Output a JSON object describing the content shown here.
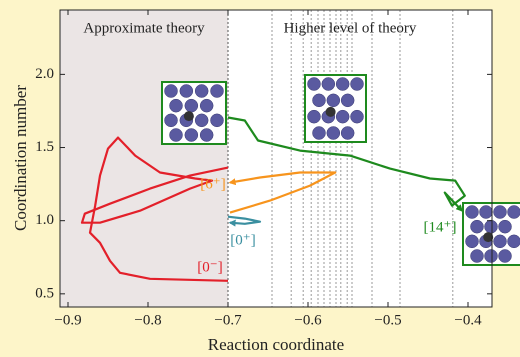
{
  "chart_data": {
    "type": "line",
    "xlabel": "Reaction coordinate",
    "ylabel": "Coordination number",
    "annotations": [
      "Approximate theory",
      "Higher level of theory"
    ],
    "xlim": [
      -0.91,
      -0.37
    ],
    "ylim": [
      0.41,
      2.44
    ],
    "xticks": [
      {
        "value": -0.9,
        "label": "−0.9"
      },
      {
        "value": -0.8,
        "label": "−0.8"
      },
      {
        "value": -0.7,
        "label": "−0.7"
      },
      {
        "value": -0.6,
        "label": "−0.6"
      },
      {
        "value": -0.5,
        "label": "−0.5"
      },
      {
        "value": -0.4,
        "label": "−0.4"
      }
    ],
    "yticks": [
      0.5,
      {
        "value": 1,
        "label": "1.0"
      },
      1.5,
      {
        "value": 2,
        "label": "2.0"
      }
    ],
    "vlines": [
      -0.7,
      -0.645,
      -0.621,
      -0.606,
      -0.596,
      -0.5875,
      -0.58,
      -0.5725,
      -0.565,
      -0.559,
      -0.551,
      -0.545,
      -0.52,
      -0.485,
      -0.419
    ],
    "series": [
      {
        "name": "[0⁻]",
        "color": "#e3202a",
        "arrow": false,
        "x": [
          -0.7,
          -0.7475,
          -0.7975,
          -0.8475,
          -0.879,
          -0.8825,
          -0.86,
          -0.81,
          -0.7475,
          -0.72,
          -0.741,
          -0.785,
          -0.816,
          -0.8375,
          -0.85,
          -0.86,
          -0.866,
          -0.8725,
          -0.86,
          -0.8475,
          -0.835,
          -0.7975,
          -0.7
        ],
        "values": [
          1.363,
          1.308,
          1.219,
          1.116,
          1.048,
          0.986,
          0.986,
          1.068,
          1.219,
          1.274,
          1.288,
          1.329,
          1.445,
          1.568,
          1.493,
          1.308,
          1.103,
          0.918,
          0.849,
          0.726,
          0.644,
          0.603,
          0.589
        ]
      },
      {
        "name": "[6⁺]",
        "color": "#f7941d",
        "arrow": true,
        "x": [
          -0.6975,
          -0.6475,
          -0.5975,
          -0.566,
          -0.61,
          -0.66,
          -0.6975
        ],
        "values": [
          1.055,
          1.137,
          1.24,
          1.329,
          1.329,
          1.295,
          1.26
        ]
      },
      {
        "name": "[0⁺]",
        "color": "#3a8fa0",
        "arrow": true,
        "x": [
          -0.7,
          -0.679,
          -0.66,
          -0.679,
          -0.6975
        ],
        "values": [
          1.027,
          1.014,
          0.993,
          0.979,
          0.986
        ]
      },
      {
        "name": "[14⁺]",
        "color": "#1e8a1e",
        "arrow": true,
        "x": [
          -0.7,
          -0.679,
          -0.6625,
          -0.61,
          -0.5475,
          -0.4975,
          -0.4475,
          -0.416,
          -0.404,
          -0.42,
          -0.429,
          -0.4075
        ],
        "values": [
          1.705,
          1.685,
          1.548,
          1.479,
          1.445,
          1.356,
          1.288,
          1.274,
          1.171,
          1.103,
          1.192,
          1.068
        ]
      }
    ]
  }
}
